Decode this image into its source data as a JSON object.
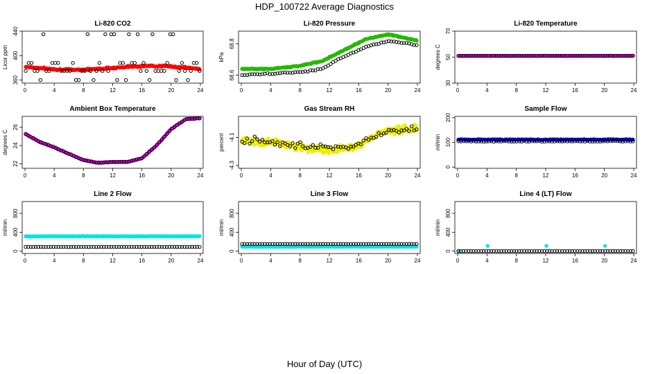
{
  "title": "HDP_100722  Average Diagnostics",
  "xlabel": "Hour of Day (UTC)",
  "colors": {
    "red": "#ff0000",
    "green": "#22bb00",
    "magenta": "#dd00dd",
    "yellow": "#eeee00",
    "blue": "#0000cc",
    "cyan": "#00e5e5",
    "black": "#000000"
  },
  "chart_data": [
    {
      "title": "Li-820 CO2",
      "type": "scatter",
      "ylabel": "Licor ppm",
      "xlim": [
        0,
        24
      ],
      "xticks": [
        0,
        4,
        8,
        12,
        16,
        20,
        24
      ],
      "ylim": [
        355,
        440
      ],
      "yticks": [
        360,
        400,
        440
      ],
      "series": [
        {
          "name": "dense",
          "color": "red",
          "filled": true,
          "gen": "sine",
          "n": 240,
          "base": 382,
          "amp": 4,
          "period": 24,
          "phase": 0.5,
          "noise": 2,
          "trend": -4
        },
        {
          "name": "line1",
          "color": "black",
          "filled": false,
          "gen": "scatter",
          "n": 60,
          "levels": [
            360,
            375,
            388,
            435
          ],
          "weights": [
            0.18,
            0.32,
            0.25,
            0.25
          ]
        }
      ]
    },
    {
      "title": "Li-820 Pressure",
      "type": "scatter",
      "ylabel": "kPa",
      "xlim": [
        0,
        24
      ],
      "xticks": [
        0,
        4,
        8,
        12,
        16,
        20,
        24
      ],
      "ylim": [
        68.55,
        68.88
      ],
      "yticks": [
        68.6,
        68.8
      ],
      "series": [
        {
          "name": "dense",
          "color": "green",
          "filled": true,
          "gen": "curve",
          "n": 240,
          "pts": [
            [
              0,
              68.64
            ],
            [
              4,
              68.64
            ],
            [
              8,
              68.66
            ],
            [
              11,
              68.69
            ],
            [
              14,
              68.76
            ],
            [
              17,
              68.83
            ],
            [
              20,
              68.86
            ],
            [
              24,
              68.82
            ]
          ],
          "noise": 0.005
        },
        {
          "name": "line1",
          "color": "black",
          "filled": false,
          "gen": "curve",
          "n": 70,
          "pts": [
            [
              0,
              68.6
            ],
            [
              4,
              68.61
            ],
            [
              8,
              68.62
            ],
            [
              11,
              68.64
            ],
            [
              14,
              68.72
            ],
            [
              17,
              68.78
            ],
            [
              20,
              68.82
            ],
            [
              24,
              68.79
            ]
          ],
          "noise": 0.006
        }
      ]
    },
    {
      "title": "Li-820 Temperature",
      "type": "scatter",
      "ylabel": "degrees C",
      "xlim": [
        0,
        24
      ],
      "xticks": [
        0,
        4,
        8,
        12,
        16,
        20,
        24
      ],
      "ylim": [
        30,
        70
      ],
      "yticks": [
        30,
        50,
        70
      ],
      "series": [
        {
          "name": "dense",
          "color": "magenta",
          "filled": true,
          "gen": "flat",
          "n": 240,
          "value": 51,
          "noise": 0.1
        },
        {
          "name": "line1",
          "color": "black",
          "filled": false,
          "gen": "flat",
          "n": 70,
          "value": 51,
          "noise": 0.1
        }
      ]
    },
    {
      "title": "Ambient Box Temperature",
      "type": "scatter",
      "ylabel": "degrees C",
      "xlim": [
        0,
        24
      ],
      "xticks": [
        0,
        4,
        8,
        12,
        16,
        20,
        24
      ],
      "ylim": [
        21.5,
        27.2
      ],
      "yticks": [
        22,
        24,
        26
      ],
      "series": [
        {
          "name": "dense",
          "color": "magenta",
          "filled": true,
          "gen": "curve",
          "n": 240,
          "pts": [
            [
              0,
              25.3
            ],
            [
              2,
              24.4
            ],
            [
              4,
              23.8
            ],
            [
              6,
              23.1
            ],
            [
              8,
              22.4
            ],
            [
              10,
              22.1
            ],
            [
              12,
              22.2
            ],
            [
              14,
              22.2
            ],
            [
              16,
              22.6
            ],
            [
              18,
              24.0
            ],
            [
              20,
              25.8
            ],
            [
              22,
              26.9
            ],
            [
              24,
              27.0
            ]
          ],
          "noise": 0.05
        },
        {
          "name": "line1",
          "color": "black",
          "filled": false,
          "gen": "curve",
          "n": 70,
          "pts": [
            [
              0,
              25.3
            ],
            [
              2,
              24.4
            ],
            [
              4,
              23.8
            ],
            [
              6,
              23.1
            ],
            [
              8,
              22.4
            ],
            [
              10,
              22.1
            ],
            [
              12,
              22.2
            ],
            [
              14,
              22.2
            ],
            [
              16,
              22.6
            ],
            [
              18,
              24.0
            ],
            [
              20,
              25.8
            ],
            [
              22,
              26.9
            ],
            [
              24,
              27.0
            ]
          ],
          "noise": 0.05
        }
      ]
    },
    {
      "title": "Gas Stream RH",
      "type": "scatter",
      "ylabel": "percent",
      "xlim": [
        0,
        24
      ],
      "xticks": [
        0,
        4,
        8,
        12,
        16,
        20,
        24
      ],
      "ylim": [
        -4.32,
        -3.95
      ],
      "yticks": [
        -4.3,
        -4.1
      ],
      "series": [
        {
          "name": "dense",
          "color": "yellow",
          "filled": true,
          "gen": "curve",
          "n": 300,
          "pts": [
            [
              0,
              -4.12
            ],
            [
              4,
              -4.13
            ],
            [
              8,
              -4.17
            ],
            [
              12,
              -4.19
            ],
            [
              16,
              -4.16
            ],
            [
              18,
              -4.09
            ],
            [
              20,
              -4.05
            ],
            [
              24,
              -4.04
            ]
          ],
          "noise": 0.04
        },
        {
          "name": "line1",
          "color": "black",
          "filled": false,
          "gen": "curve",
          "n": 70,
          "pts": [
            [
              0,
              -4.12
            ],
            [
              4,
              -4.13
            ],
            [
              8,
              -4.16
            ],
            [
              12,
              -4.18
            ],
            [
              16,
              -4.15
            ],
            [
              18,
              -4.09
            ],
            [
              20,
              -4.05
            ],
            [
              24,
              -4.04
            ]
          ],
          "noise": 0.035
        }
      ]
    },
    {
      "title": "Sample Flow",
      "type": "scatter",
      "ylabel": "ml/min",
      "xlim": [
        0,
        24
      ],
      "xticks": [
        0,
        4,
        8,
        12,
        16,
        20,
        24
      ],
      "ylim": [
        -5,
        205
      ],
      "yticks": [
        0,
        100,
        200
      ],
      "series": [
        {
          "name": "dense",
          "color": "blue",
          "filled": true,
          "gen": "flat",
          "n": 240,
          "value": 111,
          "noise": 2.5
        },
        {
          "name": "line1",
          "color": "black",
          "filled": false,
          "gen": "flat",
          "n": 70,
          "value": 104,
          "noise": 2.5
        }
      ]
    },
    {
      "title": "Line 2 Flow",
      "type": "scatter",
      "ylabel": "ml/min",
      "xlim": [
        0,
        24
      ],
      "xticks": [
        0,
        4,
        8,
        12,
        16,
        20,
        24
      ],
      "ylim": [
        -50,
        1050
      ],
      "yticks": [
        0,
        400,
        800
      ],
      "series": [
        {
          "name": "dense",
          "color": "cyan",
          "filled": true,
          "gen": "flat",
          "n": 240,
          "value": 315,
          "noise": 6
        },
        {
          "name": "line1",
          "color": "black",
          "filled": false,
          "gen": "flat",
          "n": 70,
          "value": 90,
          "noise": 3
        }
      ]
    },
    {
      "title": "Line 3 Flow",
      "type": "scatter",
      "ylabel": "ml/min",
      "xlim": [
        0,
        24
      ],
      "xticks": [
        0,
        4,
        8,
        12,
        16,
        20,
        24
      ],
      "ylim": [
        -50,
        1050
      ],
      "yticks": [
        0,
        400,
        800
      ],
      "series": [
        {
          "name": "dense",
          "color": "cyan",
          "filled": true,
          "gen": "flat",
          "n": 240,
          "value": 95,
          "noise": 4
        },
        {
          "name": "line1",
          "color": "black",
          "filled": false,
          "gen": "flat",
          "n": 70,
          "value": 150,
          "noise": 2
        }
      ]
    },
    {
      "title": "Line 4 (LT) Flow",
      "type": "scatter",
      "ylabel": "ml/min",
      "xlim": [
        0,
        24
      ],
      "xticks": [
        0,
        4,
        8,
        12,
        16,
        20,
        24
      ],
      "ylim": [
        -50,
        1050
      ],
      "yticks": [
        0,
        400,
        800
      ],
      "series": [
        {
          "name": "dense",
          "color": "cyan",
          "filled": true,
          "gen": "spikes",
          "n": 70,
          "value": 0,
          "spikes": [
            [
              0.2,
              0
            ],
            [
              4.1,
              110
            ],
            [
              12.1,
              110
            ],
            [
              20.1,
              110
            ]
          ]
        },
        {
          "name": "line1",
          "color": "black",
          "filled": false,
          "gen": "flat",
          "n": 70,
          "value": 0,
          "noise": 1
        }
      ]
    }
  ]
}
